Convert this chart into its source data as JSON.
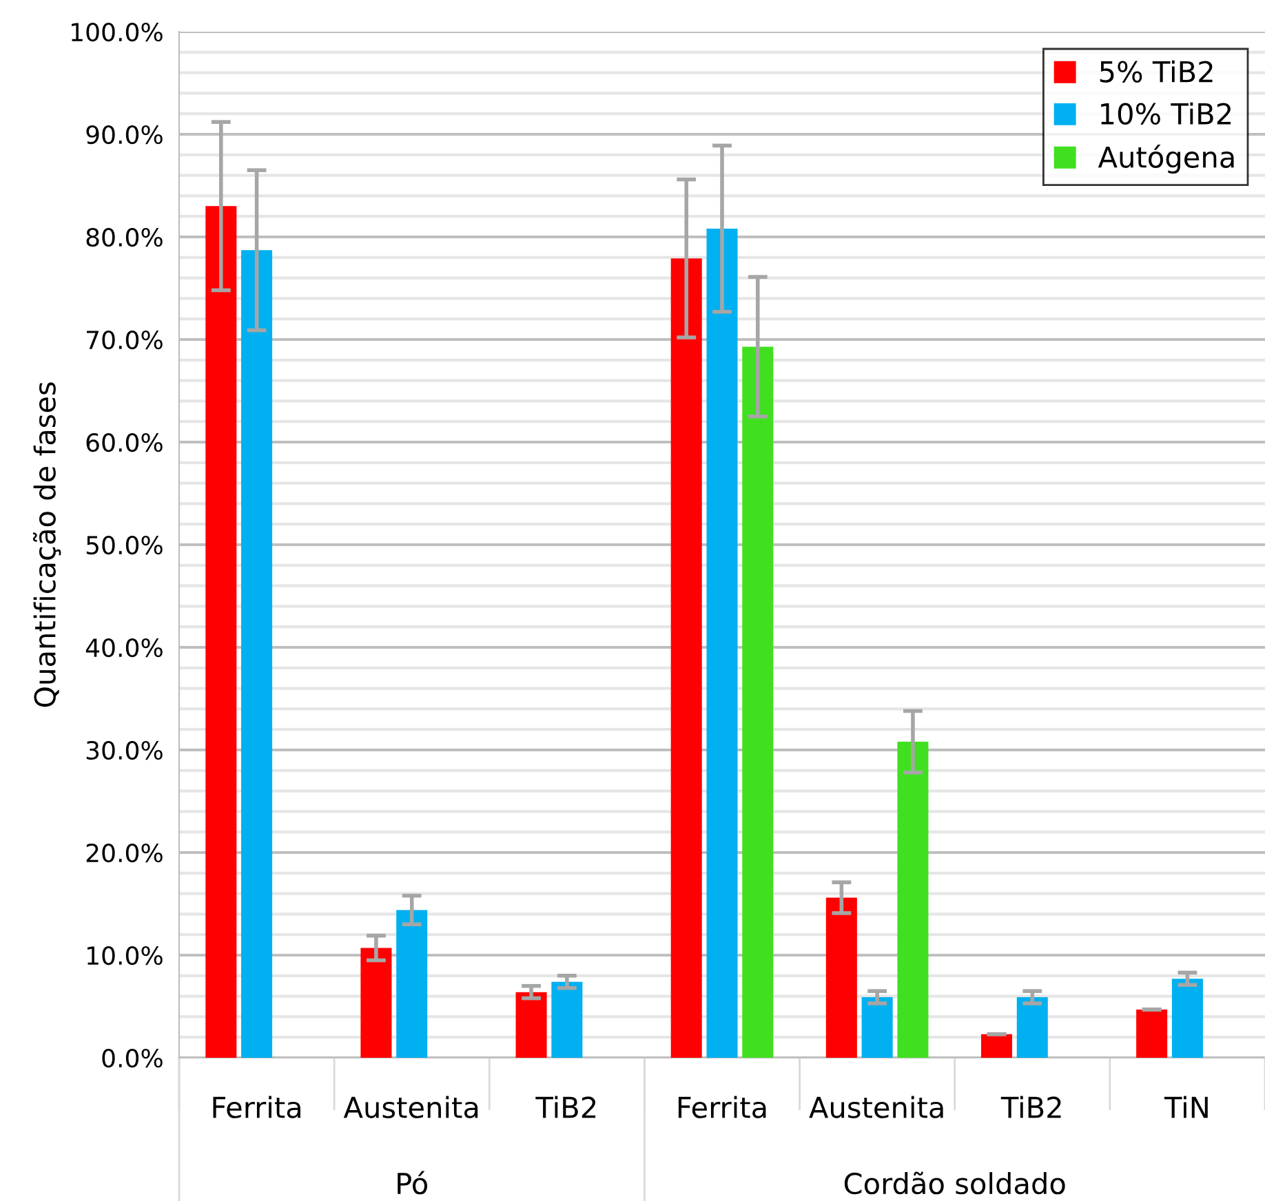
{
  "chart_data": {
    "type": "bar",
    "ylabel": "Quantificação de fases",
    "categories": [
      "Ferrita",
      "Austenita",
      "TiB2",
      "Ferrita",
      "Austenita",
      "TiB2",
      "TiN"
    ],
    "series": [
      {
        "name": "5% TiB2",
        "color": "#ff0000",
        "values": [
          83.0,
          10.7,
          6.4,
          77.9,
          15.6,
          2.3,
          4.7
        ],
        "errors": [
          8.2,
          1.2,
          0.6,
          7.7,
          1.5,
          null,
          null
        ]
      },
      {
        "name": "10% TiB2",
        "color": "#00b0f0",
        "values": [
          78.7,
          14.4,
          7.4,
          80.8,
          5.9,
          5.9,
          7.7
        ],
        "errors": [
          7.8,
          1.4,
          0.6,
          8.1,
          0.6,
          0.6,
          0.6
        ]
      },
      {
        "name": "Autógena",
        "color": "#40e020",
        "values": [
          null,
          null,
          null,
          69.3,
          30.8,
          null,
          null
        ],
        "errors": [
          null,
          null,
          null,
          6.8,
          3.0,
          null,
          null
        ]
      }
    ],
    "annotations": [
      "Pó",
      "Cordão soldado"
    ],
    "ylim": [
      0,
      100
    ],
    "yticks": [
      {
        "value": 0,
        "label": "0.0%"
      },
      {
        "value": 2,
        "label": null
      },
      {
        "value": 4,
        "label": null
      },
      {
        "value": 6,
        "label": null
      },
      {
        "value": 8,
        "label": null
      },
      {
        "value": 10,
        "label": "10.0%"
      },
      {
        "value": 12,
        "label": null
      },
      {
        "value": 14,
        "label": null
      },
      {
        "value": 16,
        "label": null
      },
      {
        "value": 18,
        "label": null
      },
      {
        "value": 20,
        "label": "20.0%"
      },
      {
        "value": 22,
        "label": null
      },
      {
        "value": 24,
        "label": null
      },
      {
        "value": 26,
        "label": null
      },
      {
        "value": 28,
        "label": null
      },
      {
        "value": 30,
        "label": "30.0%"
      },
      {
        "value": 32,
        "label": null
      },
      {
        "value": 34,
        "label": null
      },
      {
        "value": 36,
        "label": null
      },
      {
        "value": 38,
        "label": null
      },
      {
        "value": 40,
        "label": "40.0%"
      },
      {
        "value": 42,
        "label": null
      },
      {
        "value": 44,
        "label": null
      },
      {
        "value": 46,
        "label": null
      },
      {
        "value": 48,
        "label": null
      },
      {
        "value": 50,
        "label": "50.0%"
      },
      {
        "value": 52,
        "label": null
      },
      {
        "value": 54,
        "label": null
      },
      {
        "value": 56,
        "label": null
      },
      {
        "value": 58,
        "label": null
      },
      {
        "value": 60,
        "label": "60.0%"
      },
      {
        "value": 62,
        "label": null
      },
      {
        "value": 64,
        "label": null
      },
      {
        "value": 66,
        "label": null
      },
      {
        "value": 68,
        "label": null
      },
      {
        "value": 70,
        "label": "70.0%"
      },
      {
        "value": 72,
        "label": null
      },
      {
        "value": 74,
        "label": null
      },
      {
        "value": 76,
        "label": null
      },
      {
        "value": 78,
        "label": null
      },
      {
        "value": 80,
        "label": "80.0%"
      },
      {
        "value": 82,
        "label": null
      },
      {
        "value": 84,
        "label": null
      },
      {
        "value": 86,
        "label": null
      },
      {
        "value": 88,
        "label": null
      },
      {
        "value": 90,
        "label": "90.0%"
      },
      {
        "value": 92,
        "label": null
      },
      {
        "value": 94,
        "label": null
      },
      {
        "value": 96,
        "label": null
      },
      {
        "value": 98,
        "label": null
      },
      {
        "value": 100,
        "label": "100.0%"
      }
    ],
    "grid": "y",
    "legend": "top right"
  }
}
